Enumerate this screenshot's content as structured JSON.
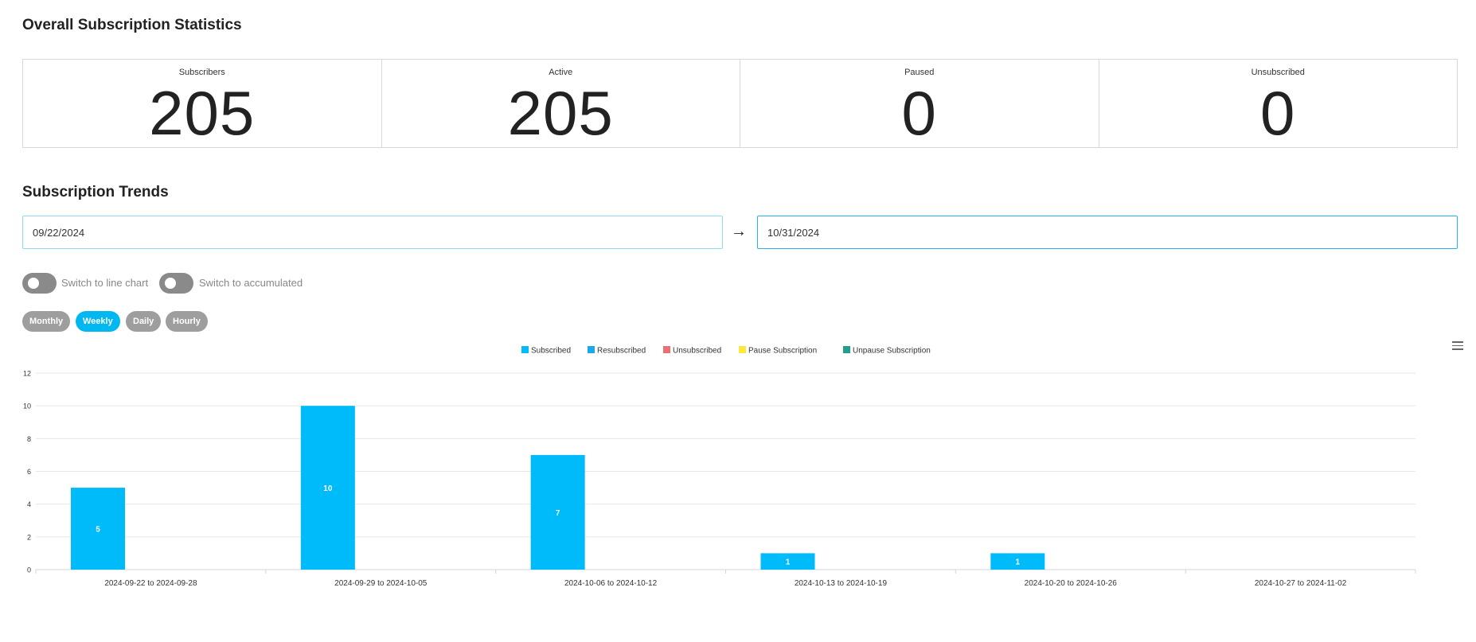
{
  "overall": {
    "title": "Overall Subscription Statistics",
    "stats": [
      {
        "label": "Subscribers",
        "value": "205"
      },
      {
        "label": "Active",
        "value": "205"
      },
      {
        "label": "Paused",
        "value": "0"
      },
      {
        "label": "Unsubscribed",
        "value": "0"
      }
    ]
  },
  "trends": {
    "title": "Subscription Trends",
    "start_date": "09/22/2024",
    "arrow": "→",
    "end_date": "10/31/2024",
    "toggles": [
      {
        "label": "Switch to line chart",
        "on": false
      },
      {
        "label": "Switch to accumulated",
        "on": false
      }
    ],
    "periods": [
      {
        "label": "Monthly",
        "active": false
      },
      {
        "label": "Weekly",
        "active": true
      },
      {
        "label": "Daily",
        "active": false
      },
      {
        "label": "Hourly",
        "active": false
      }
    ]
  },
  "chart_data": {
    "type": "bar",
    "categories": [
      "2024-09-22 to 2024-09-28",
      "2024-09-29 to 2024-10-05",
      "2024-10-06 to 2024-10-12",
      "2024-10-13 to 2024-10-19",
      "2024-10-20 to 2024-10-26",
      "2024-10-27 to 2024-11-02"
    ],
    "series": [
      {
        "name": "Subscribed",
        "color": "#00bbf9",
        "values": [
          5,
          10,
          7,
          1,
          1,
          0
        ]
      },
      {
        "name": "Resubscribed",
        "color": "#1ba8ec",
        "values": [
          0,
          0,
          0,
          0,
          0,
          0
        ]
      },
      {
        "name": "Unsubscribed",
        "color": "#ec6f78",
        "values": [
          0,
          0,
          0,
          0,
          0,
          0
        ]
      },
      {
        "name": "Pause Subscription",
        "color": "#fde93a",
        "values": [
          0,
          0,
          0,
          0,
          0,
          0
        ]
      },
      {
        "name": "Unpause Subscription",
        "color": "#239e8c",
        "values": [
          0,
          0,
          0,
          0,
          0,
          0
        ]
      }
    ],
    "yticks": [
      0,
      2,
      4,
      6,
      8,
      10,
      12
    ],
    "ylim": [
      0,
      12
    ],
    "grid": true,
    "legend": "top-center",
    "data_labels": true
  }
}
